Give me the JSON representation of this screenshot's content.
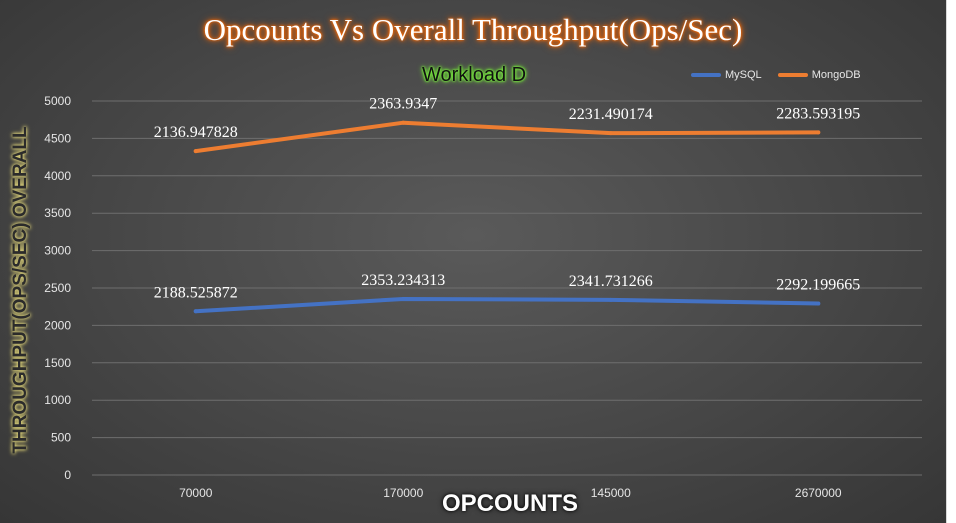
{
  "chart_data": {
    "type": "line",
    "title": "Opcounts Vs Overall Throughput(Ops/Sec)",
    "subtitle": "Workload D",
    "xlabel": "OPCOUNTS",
    "ylabel": "THROUGHPUT(OPS/SEC) OVERALL",
    "categories": [
      "70000",
      "170000",
      "145000",
      "2670000"
    ],
    "ylim": [
      0,
      5000
    ],
    "yticks": [
      "0",
      "500",
      "1000",
      "1500",
      "2000",
      "2500",
      "3000",
      "3500",
      "4000",
      "4500",
      "5000"
    ],
    "grid": true,
    "legend_position": "top-right",
    "series": [
      {
        "name": "MySQL",
        "color": "#4472c4",
        "values": [
          2188.525872,
          2353.234313,
          2341.731266,
          2292.199665
        ],
        "data_labels": [
          "2188.525872",
          "2353.234313",
          "2341.731266",
          "2292.199665"
        ]
      },
      {
        "name": "MongoDB",
        "color": "#ed7d31",
        "values": [
          4330,
          4710,
          4570,
          4580
        ],
        "data_labels": [
          "2136.947828",
          "2363.9347",
          "2231.490174",
          "2283.593195"
        ]
      }
    ]
  }
}
